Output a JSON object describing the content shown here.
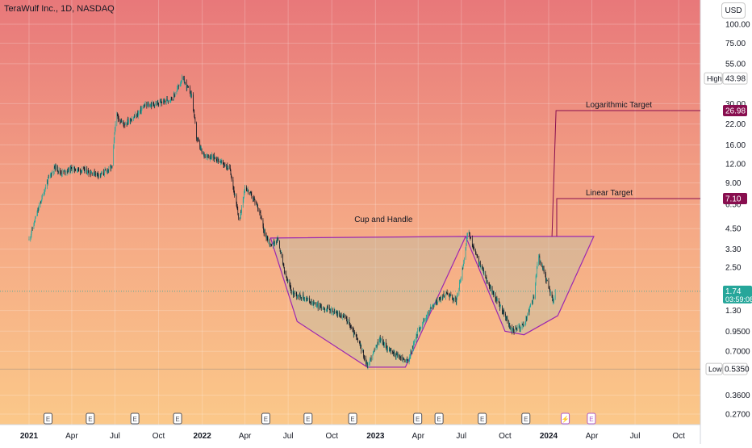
{
  "header": {
    "title": "TeraWulf Inc., 1D, NASDAQ",
    "currency": "USD"
  },
  "chart_data": {
    "type": "candlestick",
    "title": "TeraWulf Inc., 1D, NASDAQ",
    "y_scale": "log",
    "y_tick_labels": [
      "100.00",
      "75.00",
      "55.00",
      "43.98",
      "30.00",
      "26.98",
      "22.00",
      "16.00",
      "12.00",
      "9.00",
      "7.10",
      "6.50",
      "4.50",
      "3.30",
      "2.50",
      "1.74",
      "1.30",
      "0.9500",
      "0.7000",
      "0.5350",
      "0.3600",
      "0.2700"
    ],
    "x_tick_labels": [
      "2021",
      "Apr",
      "Jul",
      "Oct",
      "2022",
      "Apr",
      "Jul",
      "Oct",
      "2023",
      "Apr",
      "Jul",
      "Oct",
      "2024",
      "Apr",
      "Jul",
      "Oct"
    ],
    "price_path": [
      [
        "2021-01-01",
        3.8
      ],
      [
        "2021-01-20",
        6.0
      ],
      [
        "2021-02-10",
        9.5
      ],
      [
        "2021-02-25",
        11.5
      ],
      [
        "2021-03-10",
        10.5
      ],
      [
        "2021-04-01",
        11.2
      ],
      [
        "2021-05-01",
        10.8
      ],
      [
        "2021-06-01",
        10.2
      ],
      [
        "2021-06-25",
        11.5
      ],
      [
        "2021-07-03",
        25
      ],
      [
        "2021-07-20",
        22
      ],
      [
        "2021-08-15",
        25
      ],
      [
        "2021-09-01",
        29
      ],
      [
        "2021-10-01",
        30
      ],
      [
        "2021-11-01",
        33
      ],
      [
        "2021-11-20",
        44
      ],
      [
        "2021-12-10",
        34
      ],
      [
        "2021-12-20",
        18
      ],
      [
        "2022-01-01",
        14
      ],
      [
        "2022-02-01",
        13
      ],
      [
        "2022-03-01",
        11
      ],
      [
        "2022-03-20",
        5
      ],
      [
        "2022-04-01",
        8.5
      ],
      [
        "2022-04-20",
        7
      ],
      [
        "2022-05-01",
        6
      ],
      [
        "2022-05-10",
        4.4
      ],
      [
        "2022-05-25",
        3.5
      ],
      [
        "2022-06-10",
        3.8
      ],
      [
        "2022-06-25",
        2.2
      ],
      [
        "2022-07-10",
        1.7
      ],
      [
        "2022-08-01",
        1.6
      ],
      [
        "2022-09-01",
        1.4
      ],
      [
        "2022-10-01",
        1.3
      ],
      [
        "2022-11-01",
        1.15
      ],
      [
        "2022-12-01",
        0.75
      ],
      [
        "2022-12-15",
        0.56
      ],
      [
        "2023-01-10",
        0.85
      ],
      [
        "2023-02-01",
        0.7
      ],
      [
        "2023-03-10",
        0.6
      ],
      [
        "2023-04-01",
        0.95
      ],
      [
        "2023-05-01",
        1.4
      ],
      [
        "2023-06-01",
        1.7
      ],
      [
        "2023-06-20",
        1.5
      ],
      [
        "2023-07-01",
        2.2
      ],
      [
        "2023-07-15",
        4.3
      ],
      [
        "2023-08-01",
        3.0
      ],
      [
        "2023-09-01",
        1.8
      ],
      [
        "2023-10-01",
        1.2
      ],
      [
        "2023-10-15",
        0.95
      ],
      [
        "2023-11-10",
        1.05
      ],
      [
        "2023-12-01",
        1.6
      ],
      [
        "2023-12-10",
        3.0
      ],
      [
        "2023-12-25",
        2.2
      ],
      [
        "2024-01-10",
        1.5
      ],
      [
        "2024-01-15",
        1.74
      ]
    ],
    "pattern": "Cup and Handle",
    "targets": [
      {
        "label": "Logarithmic Target",
        "value": 26.98
      },
      {
        "label": "Linear Target",
        "value": 7.1
      }
    ],
    "high": {
      "label": "High",
      "value": 43.98
    },
    "low": {
      "label": "Low",
      "value": 0.535
    },
    "last_price": {
      "value": 1.74,
      "countdown": "03:59:08"
    },
    "earnings_markers": [
      {
        "date": "2021-02-10",
        "text": "E",
        "future": false
      },
      {
        "date": "2021-05-10",
        "text": "E",
        "future": false
      },
      {
        "date": "2021-08-12",
        "text": "E",
        "future": false
      },
      {
        "date": "2021-11-10",
        "text": "E",
        "future": false
      },
      {
        "date": "2022-05-15",
        "text": "E",
        "future": false
      },
      {
        "date": "2022-08-12",
        "text": "E",
        "future": false
      },
      {
        "date": "2022-11-14",
        "text": "E",
        "future": false
      },
      {
        "date": "2023-03-31",
        "text": "E",
        "future": false
      },
      {
        "date": "2023-05-15",
        "text": "E",
        "future": false
      },
      {
        "date": "2023-08-14",
        "text": "E",
        "future": false
      },
      {
        "date": "2023-11-14",
        "text": "E",
        "future": false
      },
      {
        "date": "2024-02-05",
        "text": "⚡",
        "future": true
      },
      {
        "date": "2024-03-31",
        "text": "E",
        "future": true
      }
    ],
    "colors": {
      "up": "#26a69a",
      "down": "#131722",
      "pattern": "#9c27b0",
      "target": "#880e4f",
      "last": "#26a69a"
    }
  }
}
